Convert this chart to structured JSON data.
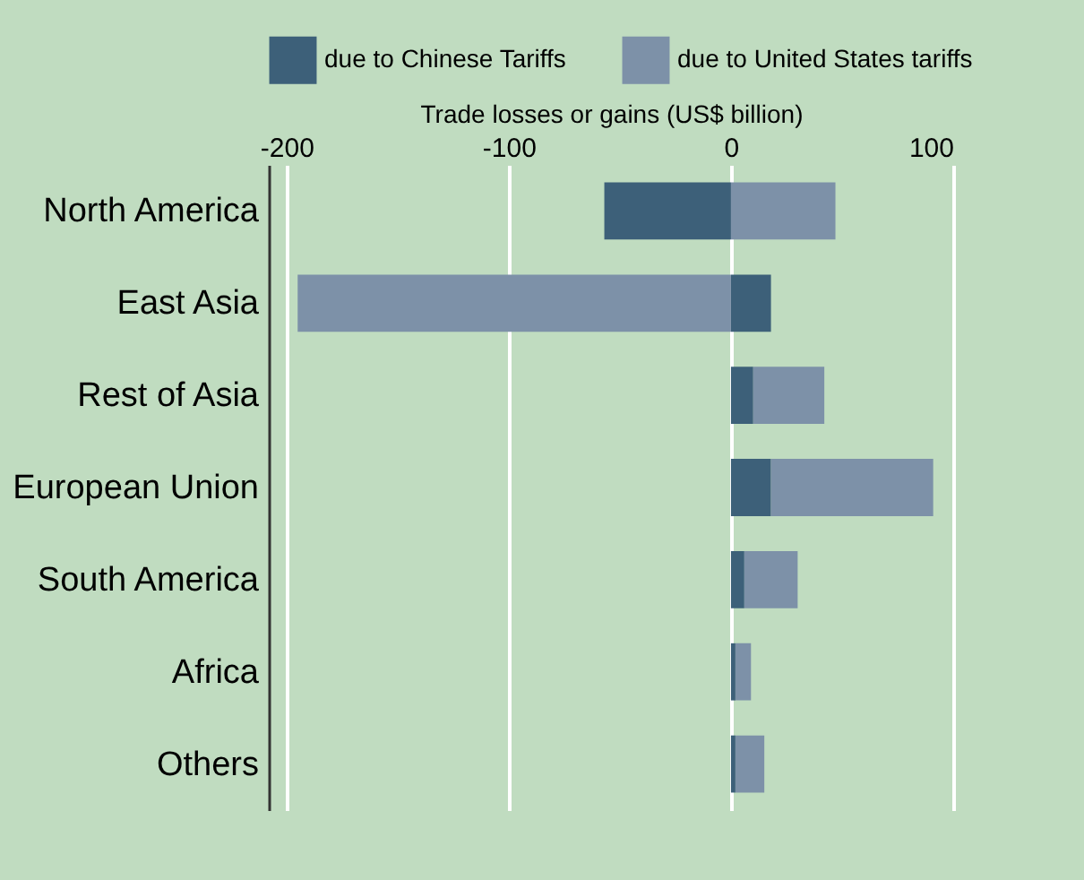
{
  "chart_data": {
    "type": "bar",
    "orientation": "horizontal",
    "stacked": true,
    "xlabel": "Trade losses or gains (US$ billion)",
    "categories": [
      "North America",
      "East Asia",
      "Rest of Asia",
      "European Union",
      "South America",
      "Africa",
      "Others"
    ],
    "series": [
      {
        "name": "due to Chinese Tariffs",
        "color": "#3d6079",
        "values": [
          -57,
          18,
          10,
          18,
          6,
          2,
          2
        ]
      },
      {
        "name": "due to United States tariffs",
        "color": "#7d91a8",
        "values": [
          47,
          -195,
          32,
          73,
          24,
          7,
          13
        ]
      }
    ],
    "xlim": [
      -208,
      100
    ],
    "xticks": [
      -200,
      -100,
      0,
      100
    ],
    "grid": "x",
    "legend": "top"
  }
}
